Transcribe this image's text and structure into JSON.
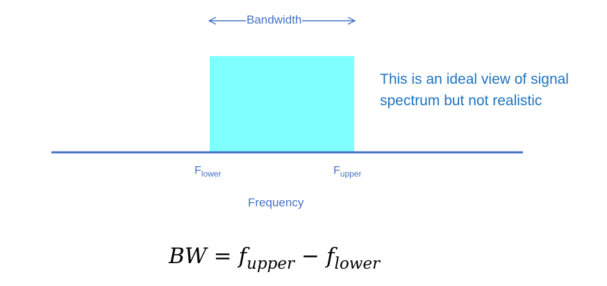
{
  "bandwidth_label": "Bandwidth",
  "note": {
    "line1": "This is an ideal view of signal",
    "line2": "spectrum but not realistic"
  },
  "f_lower": {
    "base": "F",
    "sub": "lower"
  },
  "f_upper": {
    "base": "F",
    "sub": "upper"
  },
  "axis_label": "Frequency",
  "formula": {
    "lhs": "BW",
    "eq": "=",
    "f1": "f",
    "f1_sub": "upper",
    "minus": "−",
    "f2": "f",
    "f2_sub": "lower"
  },
  "colors": {
    "spectrum_fill": "#7fffff",
    "axis_line": "#4472c4",
    "label_text": "#4472c4",
    "note_text": "#1e73be"
  }
}
